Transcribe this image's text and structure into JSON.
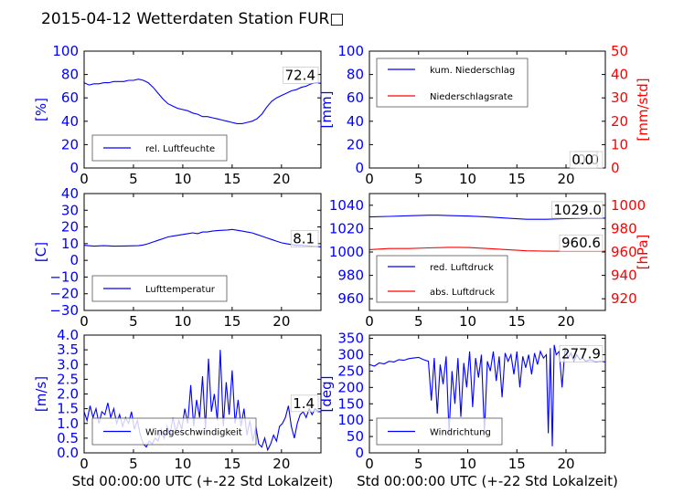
{
  "title": "2015-04-12 Wetterdaten Station FUR□",
  "colors": {
    "blue": "#0000ff",
    "red": "#ff0000",
    "axis": "#000000",
    "background": "#ffffff"
  },
  "chart_data": [
    {
      "type": "line",
      "xlabel": "",
      "ylabel": "[%]",
      "xlim": [
        0,
        24
      ],
      "ylim": [
        0,
        100
      ],
      "xticks": [
        "0",
        "5",
        "10",
        "15",
        "20"
      ],
      "yticks": [
        "0",
        "20",
        "40",
        "60",
        "80",
        "100"
      ],
      "legend": "bottom-left",
      "last_value_label": "72.4",
      "series": [
        {
          "name": "rel. Luftfeuchte",
          "color": "#0000ff",
          "x": [
            0,
            0.5,
            1,
            1.5,
            2,
            2.5,
            3,
            3.5,
            4,
            4.5,
            5,
            5.5,
            6,
            6.5,
            7,
            7.5,
            8,
            8.5,
            9,
            9.5,
            10,
            10.5,
            11,
            11.5,
            12,
            12.5,
            13,
            13.5,
            14,
            14.5,
            15,
            15.5,
            16,
            16.5,
            17,
            17.5,
            18,
            18.5,
            19,
            19.5,
            20,
            20.5,
            21,
            21.5,
            22,
            22.5,
            23,
            23.5,
            24
          ],
          "y": [
            73,
            71,
            72,
            72,
            73,
            73,
            74,
            74,
            74,
            75,
            75,
            76,
            75,
            73,
            69,
            64,
            59,
            55,
            53,
            51,
            50,
            49,
            47,
            46,
            44,
            44,
            43,
            42,
            41,
            40,
            39,
            38,
            38,
            39,
            40,
            42,
            46,
            52,
            57,
            60,
            62,
            64,
            66,
            67,
            69,
            70,
            72,
            73,
            72.4
          ]
        }
      ]
    },
    {
      "type": "line",
      "xlabel": "",
      "ylabel": "[mm]",
      "ylabel_right": "[mm/std]",
      "xlim": [
        0,
        24
      ],
      "ylim": [
        0,
        100
      ],
      "ylim_right": [
        0,
        50
      ],
      "xticks": [
        "0",
        "5",
        "10",
        "15",
        "20"
      ],
      "yticks": [
        "0",
        "20",
        "40",
        "60",
        "80",
        "100"
      ],
      "yticks_right": [
        "0",
        "10",
        "20",
        "30",
        "40",
        "50"
      ],
      "legend": "top-left",
      "last_value_label": "0.0",
      "last_value_label_right": "0.0",
      "series": [
        {
          "name": "kum. Niederschlag",
          "color": "#0000ff",
          "axis": "left",
          "x": [
            0,
            24
          ],
          "y": [
            0,
            0
          ]
        },
        {
          "name": "Niederschlagsrate",
          "color": "#ff0000",
          "axis": "right",
          "x": [
            0,
            24
          ],
          "y": [
            0,
            0
          ]
        }
      ]
    },
    {
      "type": "line",
      "xlabel": "",
      "ylabel": "[C]",
      "xlim": [
        0,
        24
      ],
      "ylim": [
        -30,
        40
      ],
      "xticks": [
        "0",
        "5",
        "10",
        "15",
        "20"
      ],
      "yticks": [
        "−30",
        "−20",
        "−10",
        "0",
        "10",
        "20",
        "30",
        "40"
      ],
      "legend": "bottom-left",
      "last_value_label": "8.1",
      "series": [
        {
          "name": "Lufttemperatur",
          "color": "#0000ff",
          "x": [
            0,
            1,
            2,
            3,
            4,
            5,
            5.5,
            6,
            6.5,
            7,
            7.5,
            8,
            8.5,
            9,
            9.5,
            10,
            10.5,
            11,
            11.5,
            12,
            12.5,
            13,
            13.5,
            14,
            14.5,
            15,
            15.5,
            16,
            16.5,
            17,
            17.5,
            18,
            18.5,
            19,
            19.5,
            20,
            20.5,
            21,
            21.5,
            22,
            22.5,
            23,
            23.5,
            24
          ],
          "y": [
            9,
            8.5,
            8.8,
            8.5,
            8.6,
            8.7,
            8.8,
            9.2,
            10,
            11,
            12,
            13,
            14,
            14.5,
            15,
            15.5,
            16,
            16.5,
            16,
            17,
            17,
            17.5,
            17.8,
            18,
            18.2,
            18.5,
            18,
            17.5,
            17,
            16.5,
            15.5,
            14.5,
            13.5,
            12.5,
            11.5,
            10.5,
            10,
            9.5,
            9,
            9,
            8.7,
            8.5,
            8.3,
            8.1
          ]
        }
      ]
    },
    {
      "type": "line",
      "xlabel": "",
      "ylabel": "",
      "ylabel_right": "[hPa]",
      "xlim": [
        0,
        24
      ],
      "ylim": [
        950,
        1050
      ],
      "ylim_right": [
        910,
        1010
      ],
      "xticks": [
        "0",
        "5",
        "10",
        "15",
        "20"
      ],
      "yticks": [
        "960",
        "980",
        "1000",
        "1020",
        "1040"
      ],
      "yticks_right": [
        "920",
        "940",
        "960",
        "980",
        "1000"
      ],
      "legend": "bottom-left",
      "last_value_label": "1029.0",
      "last_value_label_right": "960.6",
      "series": [
        {
          "name": "red. Luftdruck",
          "color": "#0000ff",
          "axis": "left",
          "x": [
            0,
            2,
            4,
            6,
            7,
            8,
            10,
            12,
            14,
            16,
            18,
            20,
            22,
            24
          ],
          "y": [
            1030,
            1030.5,
            1031,
            1031.5,
            1031.5,
            1031.2,
            1030.8,
            1030,
            1029,
            1028,
            1028,
            1028.5,
            1029,
            1029
          ]
        },
        {
          "name": "abs. Luftdruck",
          "color": "#ff0000",
          "axis": "right",
          "x": [
            0,
            2,
            4,
            6,
            8,
            9,
            10,
            12,
            14,
            16,
            18,
            20,
            22,
            24
          ],
          "y": [
            962,
            963,
            963,
            963.5,
            964,
            964,
            963.8,
            963,
            962,
            961,
            960.7,
            960.6,
            960.6,
            960.6
          ]
        }
      ]
    },
    {
      "type": "line",
      "xlabel": "Std 00:00:00 UTC (+-22 Std Lokalzeit)",
      "ylabel": "[m/s]",
      "xlim": [
        0,
        24
      ],
      "ylim": [
        0,
        4
      ],
      "xticks": [
        "0",
        "5",
        "10",
        "15",
        "20"
      ],
      "yticks": [
        "0.0",
        "0.5",
        "1.0",
        "1.5",
        "2.0",
        "2.5",
        "3.0",
        "3.5",
        "4.0"
      ],
      "legend": "bottom-left",
      "last_value_label": "1.4",
      "series": [
        {
          "name": "Windgeschwindigkeit",
          "color": "#0000ff",
          "x": [
            0,
            0.3,
            0.6,
            0.9,
            1.2,
            1.5,
            1.8,
            2.1,
            2.4,
            2.7,
            3,
            3.3,
            3.6,
            3.9,
            4.2,
            4.5,
            4.8,
            5.1,
            5.4,
            5.7,
            6,
            6.3,
            6.6,
            6.9,
            7.2,
            7.5,
            7.8,
            8.1,
            8.4,
            8.7,
            9,
            9.3,
            9.6,
            9.9,
            10.2,
            10.5,
            10.8,
            11.1,
            11.4,
            11.7,
            12,
            12.3,
            12.6,
            12.9,
            13.2,
            13.5,
            13.8,
            14.1,
            14.4,
            14.7,
            15,
            15.3,
            15.6,
            15.9,
            16.2,
            16.5,
            16.8,
            17.1,
            17.4,
            17.7,
            18,
            18.3,
            18.6,
            18.9,
            19.2,
            19.5,
            19.8,
            20.1,
            20.4,
            20.7,
            21,
            21.3,
            21.6,
            21.9,
            22.2,
            22.5,
            22.8,
            23.1,
            23.4,
            23.7,
            24
          ],
          "y": [
            1.4,
            1.1,
            1.6,
            1.2,
            1.5,
            1.0,
            1.4,
            1.3,
            1.7,
            1.2,
            1.5,
            1.0,
            1.3,
            0.9,
            1.2,
            1.0,
            1.4,
            0.8,
            1.1,
            0.6,
            0.3,
            0.2,
            0.4,
            0.3,
            0.5,
            0.4,
            0.8,
            0.5,
            0.9,
            0.6,
            1.2,
            0.7,
            1.1,
            0.8,
            1.5,
            1.0,
            2.3,
            0.9,
            1.8,
            1.2,
            2.6,
            0.8,
            3.2,
            1.4,
            2.0,
            1.1,
            3.5,
            0.9,
            2.4,
            1.3,
            2.8,
            1.0,
            1.8,
            0.9,
            1.5,
            0.6,
            1.1,
            0.4,
            0.9,
            0.3,
            0.2,
            0.5,
            0.1,
            0.3,
            0.6,
            0.4,
            0.9,
            1.0,
            1.2,
            1.6,
            0.9,
            0.5,
            1.0,
            1.3,
            1.4,
            1.2,
            1.5,
            1.3,
            1.5,
            1.4,
            1.4
          ]
        }
      ]
    },
    {
      "type": "line",
      "xlabel": "Std 00:00:00 UTC (+-22 Std Lokalzeit)",
      "ylabel": "[deg]",
      "xlim": [
        0,
        24
      ],
      "ylim": [
        0,
        360
      ],
      "xticks": [
        "0",
        "5",
        "10",
        "15",
        "20"
      ],
      "yticks": [
        "0",
        "50",
        "100",
        "150",
        "200",
        "250",
        "300",
        "350"
      ],
      "legend": "bottom-left",
      "last_value_label": "277.9",
      "series": [
        {
          "name": "Windrichtung",
          "color": "#0000ff",
          "x": [
            0,
            0.5,
            1,
            1.5,
            2,
            2.5,
            3,
            3.5,
            4,
            4.5,
            5,
            5.5,
            6,
            6.3,
            6.6,
            6.9,
            7.2,
            7.5,
            7.8,
            8.1,
            8.4,
            8.7,
            9,
            9.3,
            9.6,
            9.9,
            10.2,
            10.5,
            10.8,
            11.1,
            11.4,
            11.7,
            12,
            12.3,
            12.6,
            12.9,
            13.2,
            13.5,
            13.8,
            14.1,
            14.4,
            14.7,
            15,
            15.3,
            15.6,
            15.9,
            16.2,
            16.5,
            16.8,
            17.1,
            17.4,
            17.7,
            18,
            18.2,
            18.4,
            18.6,
            18.8,
            19,
            19.3,
            19.6,
            19.9,
            20.2,
            20.5,
            20.8,
            21.1,
            21.4,
            21.7,
            22,
            22.5,
            23,
            23.5,
            24
          ],
          "y": [
            270,
            265,
            275,
            272,
            280,
            278,
            285,
            283,
            288,
            290,
            292,
            285,
            280,
            160,
            290,
            120,
            270,
            210,
            295,
            60,
            250,
            150,
            290,
            110,
            275,
            200,
            310,
            140,
            290,
            230,
            300,
            60,
            280,
            250,
            310,
            220,
            295,
            170,
            305,
            280,
            300,
            240,
            310,
            200,
            295,
            260,
            300,
            240,
            305,
            270,
            310,
            290,
            300,
            60,
            320,
            20,
            330,
            300,
            310,
            200,
            320,
            290,
            305,
            280,
            300,
            285,
            290,
            280,
            285,
            278,
            280,
            277.9
          ]
        }
      ]
    }
  ]
}
